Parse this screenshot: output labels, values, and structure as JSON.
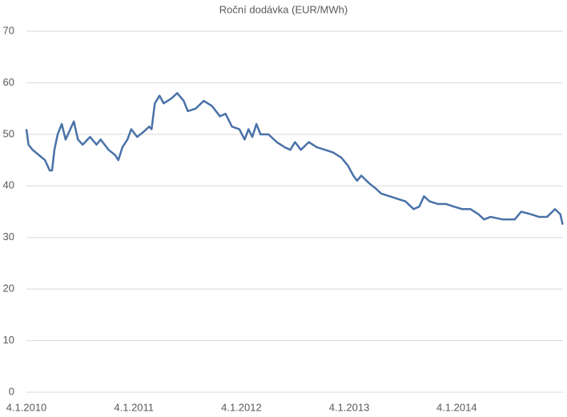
{
  "chart_data": {
    "type": "line",
    "title": "Roční dodávka (EUR/MWh)",
    "x": [
      "2010-01-04",
      "2010-01-11",
      "2010-01-25",
      "2010-02-15",
      "2010-03-08",
      "2010-03-24",
      "2010-04-01",
      "2010-04-09",
      "2010-04-20",
      "2010-05-04",
      "2010-05-17",
      "2010-06-14",
      "2010-06-28",
      "2010-07-14",
      "2010-08-08",
      "2010-08-30",
      "2010-09-13",
      "2010-10-10",
      "2010-11-01",
      "2010-11-12",
      "2010-11-26",
      "2010-12-13",
      "2010-12-26",
      "2011-01-15",
      "2011-02-06",
      "2011-02-25",
      "2011-03-05",
      "2011-03-16",
      "2011-04-01",
      "2011-04-15",
      "2011-05-12",
      "2011-05-31",
      "2011-06-22",
      "2011-07-06",
      "2011-08-02",
      "2011-08-29",
      "2011-09-26",
      "2011-10-23",
      "2011-11-11",
      "2011-12-03",
      "2011-12-28",
      "2012-01-15",
      "2012-01-28",
      "2012-02-10",
      "2012-02-24",
      "2012-03-09",
      "2012-04-05",
      "2012-05-03",
      "2012-05-30",
      "2012-06-18",
      "2012-07-04",
      "2012-07-24",
      "2012-08-20",
      "2012-09-16",
      "2012-10-14",
      "2012-11-10",
      "2012-12-08",
      "2012-12-30",
      "2013-01-18",
      "2013-01-31",
      "2013-02-14",
      "2013-03-13",
      "2013-04-04",
      "2013-04-23",
      "2013-05-21",
      "2013-06-17",
      "2013-07-14",
      "2013-08-11",
      "2013-08-30",
      "2013-09-15",
      "2013-10-04",
      "2013-11-01",
      "2013-11-28",
      "2013-12-25",
      "2014-01-23",
      "2014-02-20",
      "2014-03-19",
      "2014-04-07",
      "2014-04-29",
      "2014-06-09",
      "2014-07-20",
      "2014-08-11",
      "2014-09-13",
      "2014-10-10",
      "2014-11-07",
      "2014-12-04",
      "2014-12-22",
      "2014-12-30"
    ],
    "values": [
      51,
      48,
      47,
      46,
      45,
      43,
      43,
      47,
      50,
      52,
      49,
      52.5,
      49,
      48,
      49.5,
      48,
      49,
      47,
      46,
      45,
      47.5,
      49,
      51,
      49.5,
      50.5,
      51.5,
      51,
      56,
      57.5,
      56,
      57,
      58,
      56.5,
      54.5,
      55,
      56.5,
      55.5,
      53.5,
      54,
      51.5,
      51,
      49,
      51,
      49.5,
      52,
      50,
      50,
      48.5,
      47.5,
      47,
      48.5,
      47,
      48.5,
      47.5,
      47,
      46.5,
      45.5,
      44,
      42,
      41,
      42,
      40.5,
      39.5,
      38.5,
      38,
      37.5,
      37,
      35.5,
      36,
      38,
      37,
      36.5,
      36.5,
      36,
      35.5,
      35.5,
      34.5,
      33.5,
      34,
      33.5,
      33.5,
      35,
      34.5,
      34,
      34,
      35.5,
      34.5,
      32.5
    ],
    "color": "#4a72a8",
    "xlim": [
      "2010-01-04",
      "2014-12-31"
    ],
    "xticks": [
      {
        "value": "2010-01-04",
        "label": "4.1.2010"
      },
      {
        "value": "2011-01-04",
        "label": "4.1.2011"
      },
      {
        "value": "2012-01-04",
        "label": "4.1.2012"
      },
      {
        "value": "2013-01-04",
        "label": "4.1.2013"
      },
      {
        "value": "2014-01-04",
        "label": "4.1.2014"
      }
    ],
    "ylim": [
      0,
      70
    ],
    "yticks": [
      0,
      10,
      20,
      30,
      40,
      50,
      60,
      70
    ],
    "grid": true
  }
}
